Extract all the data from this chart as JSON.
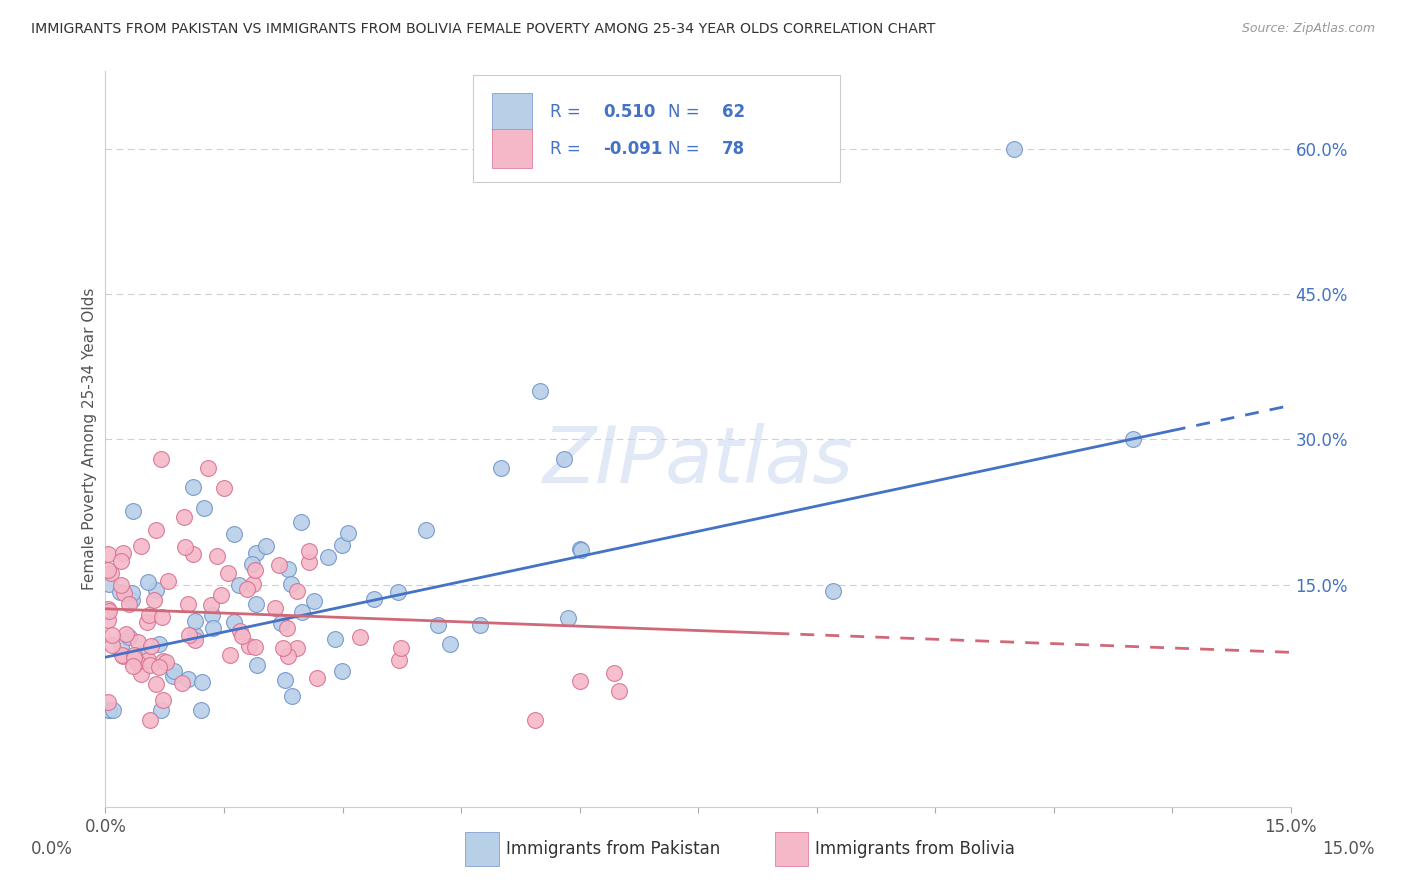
{
  "title": "IMMIGRANTS FROM PAKISTAN VS IMMIGRANTS FROM BOLIVIA FEMALE POVERTY AMONG 25-34 YEAR OLDS CORRELATION CHART",
  "source": "Source: ZipAtlas.com",
  "ylabel": "Female Poverty Among 25-34 Year Olds",
  "y_tick_labels": [
    "60.0%",
    "45.0%",
    "30.0%",
    "15.0%"
  ],
  "y_tick_values": [
    60.0,
    45.0,
    30.0,
    15.0
  ],
  "x_lim": [
    0.0,
    15.0
  ],
  "y_lim": [
    -8.0,
    68.0
  ],
  "pakistan_R": "0.510",
  "pakistan_N": "62",
  "bolivia_R": "-0.091",
  "bolivia_N": "78",
  "pakistan_fill": "#b8cfe8",
  "bolivia_fill": "#f5b8c8",
  "pakistan_edge": "#7094cc",
  "bolivia_edge": "#d87090",
  "line_color_pak": "#4472c4",
  "line_color_bol": "#d06878",
  "legend_text_color": "#4472c4",
  "legend_label_pakistan": "Immigrants from Pakistan",
  "legend_label_bolivia": "Immigrants from Bolivia",
  "background_color": "#ffffff",
  "grid_color": "#d0d0d0",
  "watermark": "ZIPatlas",
  "pak_line_y0": 7.5,
  "pak_line_y15": 33.5,
  "bol_line_y0": 12.5,
  "bol_line_y15": 8.0
}
